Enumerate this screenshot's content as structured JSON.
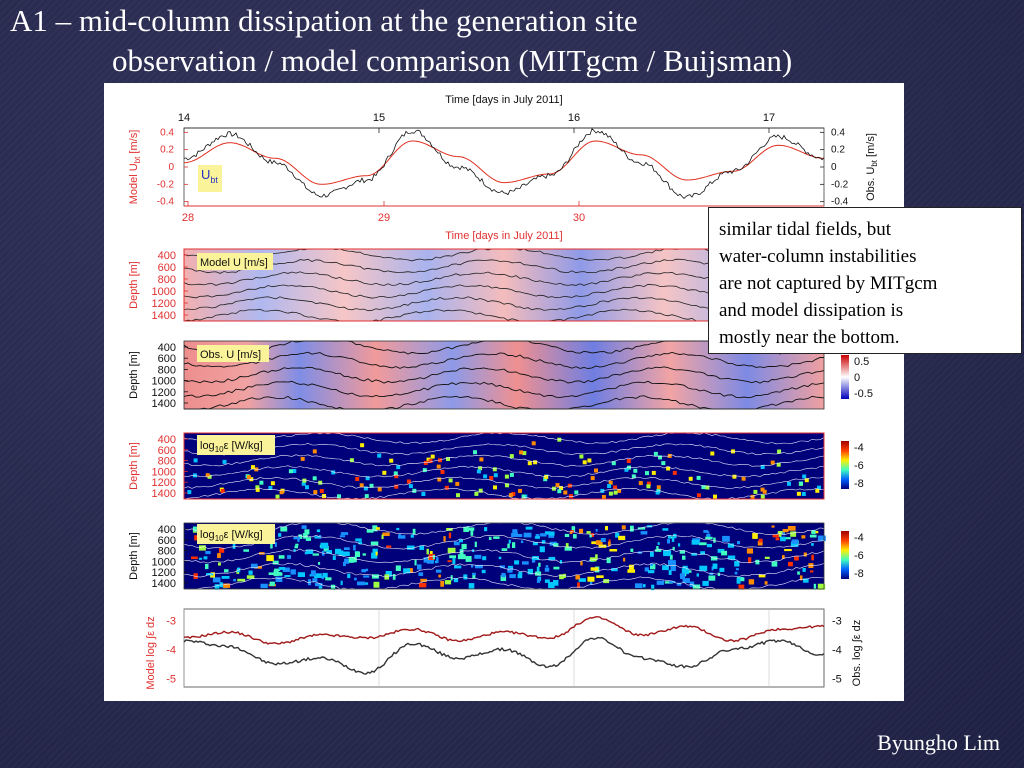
{
  "slide": {
    "title_line1": "A1 – mid-column dissipation at the generation site",
    "title_line2": "observation / model comparison (MITgcm  / Buijsman)",
    "callout_lines": [
      "similar tidal fields, but",
      "water-column instabilities",
      "are not captured by MITgcm",
      "and model dissipation is",
      "mostly near the bottom."
    ],
    "author": "Byungho Lim"
  },
  "colors": {
    "model": "#e03020",
    "observation": "#111111",
    "axis_red": "#e03030",
    "positive": "#d7191c",
    "negative": "#2b3bd0",
    "eps_background": "#00007a"
  },
  "chart_data": [
    {
      "panel": "barotropic-velocity",
      "type": "line",
      "top_axis_label": "Time [days in July 2011]",
      "top_ticks": [
        "14",
        "15",
        "16",
        "17"
      ],
      "bottom_axis_label": "Time [days in July 2011]",
      "bottom_ticks": [
        "28",
        "29",
        "30"
      ],
      "ylabel_left": "Model U",
      "ylabel_left_sub": "bt",
      "ylabel_left_unit": " [m/s]",
      "ylabel_right": "Obs. U",
      "ylabel_right_sub": "bt",
      "ylabel_right_unit": " [m/s]",
      "yticks": [
        "0.4",
        "0.2",
        "0",
        "-0.2",
        "-0.4"
      ],
      "ylim": [
        -0.45,
        0.45
      ],
      "inset_label": "U",
      "inset_label_sub": "bt",
      "x": [
        0,
        0.25,
        0.5,
        0.75,
        1.0,
        1.25,
        1.5,
        1.75,
        2.0,
        2.25,
        2.5,
        2.75,
        3.0,
        3.25,
        3.5
      ],
      "series": [
        {
          "values": [
            0.05,
            0.28,
            0.1,
            -0.2,
            -0.1,
            0.3,
            0.12,
            -0.18,
            -0.08,
            0.3,
            0.14,
            -0.15,
            -0.05,
            0.25,
            0.1
          ]
        },
        {
          "values": [
            0.1,
            0.38,
            0.05,
            -0.33,
            -0.15,
            0.42,
            0.0,
            -0.3,
            -0.1,
            0.42,
            0.05,
            -0.35,
            -0.05,
            0.35,
            0.1
          ]
        }
      ]
    },
    {
      "panel": "model-u",
      "type": "heatmap",
      "inset_label": "Model U [m/s]",
      "ylabel": "Depth [m]",
      "yticks": [
        "400",
        "600",
        "800",
        "1000",
        "1200",
        "1400"
      ]
    },
    {
      "panel": "obs-u",
      "type": "heatmap",
      "inset_label": "Obs. U [m/s]",
      "ylabel": "Depth [m]",
      "yticks": [
        "400",
        "600",
        "800",
        "1000",
        "1200",
        "1400"
      ],
      "colorbar_ticks": [
        "0.5",
        "0",
        "-0.5"
      ]
    },
    {
      "panel": "model-epsilon",
      "type": "heatmap",
      "inset_label_pre": "log",
      "inset_label_sub": "10",
      "inset_label_post": "ε [W/kg]",
      "ylabel": "Depth [m]",
      "yticks": [
        "400",
        "600",
        "800",
        "1000",
        "1200",
        "1400"
      ],
      "colorbar_ticks": [
        "-4",
        "-6",
        "-8"
      ]
    },
    {
      "panel": "obs-epsilon",
      "type": "heatmap",
      "inset_label_pre": "log",
      "inset_label_sub": "10",
      "inset_label_post": "ε [W/kg]",
      "ylabel": "Depth [m]",
      "yticks": [
        "400",
        "600",
        "800",
        "1000",
        "1200",
        "1400"
      ],
      "colorbar_ticks": [
        "-4",
        "-6",
        "-8"
      ]
    },
    {
      "panel": "integrated-dissipation",
      "type": "line",
      "ylabel_left": "Model log ∫ε dz",
      "ylabel_right": "Obs. log ∫ε dz",
      "yticks": [
        "-3",
        "-4",
        "-5"
      ],
      "ylim": [
        -5.3,
        -2.6
      ],
      "x": [
        0,
        0.25,
        0.5,
        0.75,
        1.0,
        1.25,
        1.5,
        1.75,
        2.0,
        2.25,
        2.5,
        2.75,
        3.0,
        3.25,
        3.5
      ],
      "series": [
        {
          "values": [
            -3.6,
            -3.4,
            -3.8,
            -3.5,
            -3.6,
            -3.3,
            -3.7,
            -3.4,
            -3.6,
            -2.9,
            -3.5,
            -3.2,
            -3.7,
            -3.3,
            -3.2
          ]
        },
        {
          "values": [
            -3.7,
            -3.9,
            -4.5,
            -4.3,
            -4.8,
            -3.8,
            -4.3,
            -4.0,
            -4.6,
            -3.6,
            -4.3,
            -4.6,
            -4.0,
            -3.7,
            -4.2
          ]
        }
      ]
    }
  ]
}
